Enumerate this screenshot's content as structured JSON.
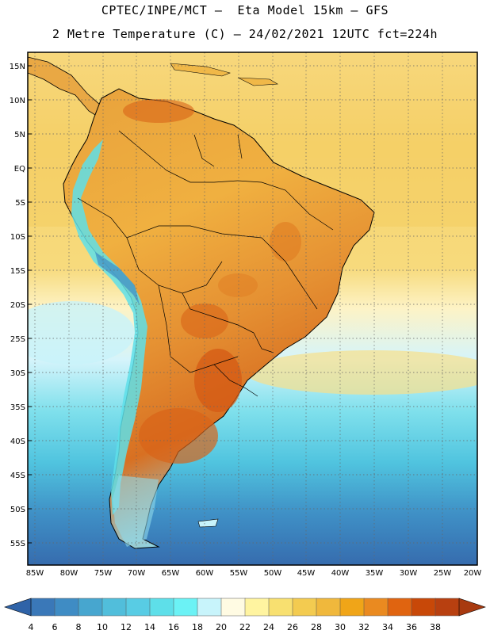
{
  "title_line1": "CPTEC/INPE/MCT –  Eta Model 15km – GFS",
  "title_line2": "2 Metre Temperature (C) – 24/02/2021 12UTC fct=224h",
  "lat_labels": [
    "15N",
    "10N",
    "5N",
    "EQ",
    "5S",
    "10S",
    "15S",
    "20S",
    "25S",
    "30S",
    "35S",
    "40S",
    "45S",
    "50S",
    "55S"
  ],
  "lon_labels": [
    "85W",
    "80W",
    "75W",
    "70W",
    "65W",
    "60W",
    "55W",
    "50W",
    "45W",
    "40W",
    "35W",
    "30W",
    "25W",
    "20W"
  ],
  "colorbar": {
    "labels": [
      "4",
      "6",
      "8",
      "10",
      "12",
      "14",
      "16",
      "18",
      "20",
      "22",
      "24",
      "26",
      "28",
      "30",
      "32",
      "34",
      "36",
      "38"
    ],
    "colors": [
      "#3a78b8",
      "#3f8cc4",
      "#47a6cf",
      "#51bedb",
      "#58cce4",
      "#5edfe9",
      "#6bf2f5",
      "#c8f4fb",
      "#fffbe3",
      "#fff4a0",
      "#f8e070",
      "#f3cb50",
      "#f0b83c",
      "#f0a518",
      "#ea8a20",
      "#e06410",
      "#c84808",
      "#b84010"
    ],
    "low_end_color": "#2f63a8",
    "high_end_color": "#a83a10"
  },
  "colors": {
    "ocean_cold": "#3a72b4",
    "ocean_cool": "#4ab6d8",
    "ocean_mild": "#c8f2fa",
    "warm_bg": "#f6d470",
    "land_hot": "#e07020",
    "andes_cold": "#5edfe9"
  }
}
